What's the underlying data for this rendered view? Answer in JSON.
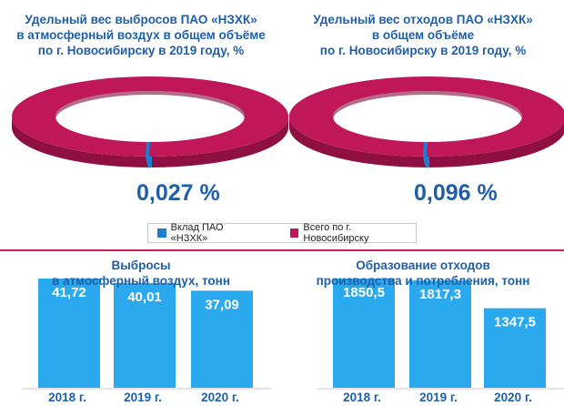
{
  "legend": {
    "items": [
      {
        "label": "Вклад ПАО «НЗХК»",
        "color": "#1e7fd0"
      },
      {
        "label": "Всего по г. Новосибирску",
        "color": "#c0175a"
      }
    ]
  },
  "chart_data": [
    {
      "type": "pie",
      "title": "Удельный вес выбросов ПАО «НЗХК»\nв атмосферный воздух в общем объёме\nпо  г. Новосибирску в 2019 году, %",
      "slices": [
        {
          "label": "Вклад ПАО «НЗХК»",
          "value": 0.027
        },
        {
          "label": "Всего по г. Новосибирску",
          "value": 99.973
        }
      ],
      "value_label": "0,027 %"
    },
    {
      "type": "pie",
      "title": "Удельный вес отходов ПАО «НЗХК»\nв общем объёме\nпо г. Новосибирску в 2019 году, %",
      "slices": [
        {
          "label": "Вклад ПАО «НЗХК»",
          "value": 0.096
        },
        {
          "label": "Всего по г. Новосибирску",
          "value": 99.904
        }
      ],
      "value_label": "0,096 %"
    },
    {
      "type": "bar",
      "title": "Выбросы\nв атмосферный воздух, тонн",
      "categories": [
        "2018 г.",
        "2019 г.",
        "2020 г."
      ],
      "values": [
        41.72,
        40.01,
        37.09
      ],
      "labels": [
        "41,72",
        "40,01",
        "37,09"
      ],
      "color": "#2aa9ee"
    },
    {
      "type": "bar",
      "title": "Образование отходов\nпроизводства и потребления, тонн",
      "categories": [
        "2018 г.",
        "2019 г.",
        "2020 г."
      ],
      "values": [
        1850.5,
        1817.3,
        1347.5
      ],
      "labels": [
        "1850,5",
        "1817,3",
        "1347,5"
      ],
      "color": "#2aa9ee"
    }
  ]
}
